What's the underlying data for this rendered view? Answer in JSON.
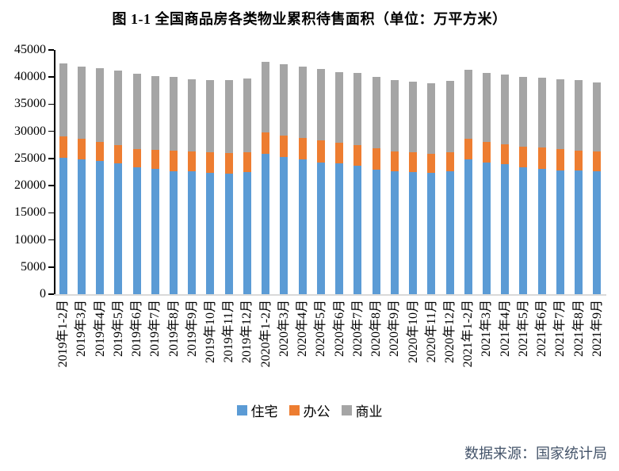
{
  "title": "图 1-1 全国商品房各类物业累积待售面积（单位：万平方米）",
  "source": "数据来源：国家统计局",
  "colors": {
    "residential": "#5B9BD5",
    "office": "#ED7D31",
    "commercial": "#A5A5A5",
    "axis": "#000000",
    "baseline": "#D9D9D9",
    "title_text": "#000000",
    "source_text": "#44546A"
  },
  "chart_data": {
    "type": "bar",
    "stacked": true,
    "title": "图 1-1 全国商品房各类物业累积待售面积（单位：万平方米）",
    "unit": "万平方米",
    "xlabel": "",
    "ylabel": "",
    "ylim": [
      0,
      45000
    ],
    "ytick_step": 5000,
    "gridlines": false,
    "legend_position": "bottom",
    "categories": [
      "2019年1-2月",
      "2019年3月",
      "2019年4月",
      "2019年5月",
      "2019年6月",
      "2019年7月",
      "2019年8月",
      "2019年9月",
      "2019年10月",
      "2019年11月",
      "2019年12月",
      "2020年1-2月",
      "2020年3月",
      "2020年4月",
      "2020年5月",
      "2020年6月",
      "2020年7月",
      "2020年8月",
      "2020年9月",
      "2020年10月",
      "2020年11月",
      "2020年12月",
      "2021年1-2月",
      "2021年3月",
      "2021年4月",
      "2021年5月",
      "2021年6月",
      "2021年7月",
      "2021年8月",
      "2021年9月"
    ],
    "series": [
      {
        "key": "residential",
        "name": "住宅",
        "color": "#5B9BD5",
        "values": [
          25200,
          24800,
          24550,
          24050,
          23350,
          23050,
          22650,
          22600,
          22350,
          22250,
          22450,
          25850,
          25250,
          24850,
          24300,
          24050,
          23700,
          22950,
          22600,
          22500,
          22350,
          22600,
          24800,
          24300,
          23900,
          23400,
          23150,
          22850,
          22750,
          22600
        ]
      },
      {
        "key": "office",
        "name": "办公",
        "color": "#ED7D31",
        "values": [
          3850,
          3800,
          3550,
          3350,
          3350,
          3600,
          3850,
          3750,
          3800,
          3750,
          3700,
          3900,
          4000,
          4000,
          4050,
          3900,
          3750,
          3950,
          3750,
          3650,
          3500,
          3550,
          3900,
          3800,
          3700,
          3800,
          3900,
          3900,
          3750,
          3650
        ]
      },
      {
        "key": "commercial",
        "name": "商业",
        "color": "#A5A5A5",
        "values": [
          13450,
          13350,
          13600,
          13850,
          13900,
          13600,
          13550,
          13250,
          13250,
          13500,
          13650,
          13050,
          13150,
          13050,
          13200,
          12950,
          13250,
          13100,
          13050,
          12950,
          13050,
          13150,
          12700,
          12700,
          12850,
          12800,
          12800,
          12850,
          12950,
          12800
        ]
      }
    ]
  }
}
